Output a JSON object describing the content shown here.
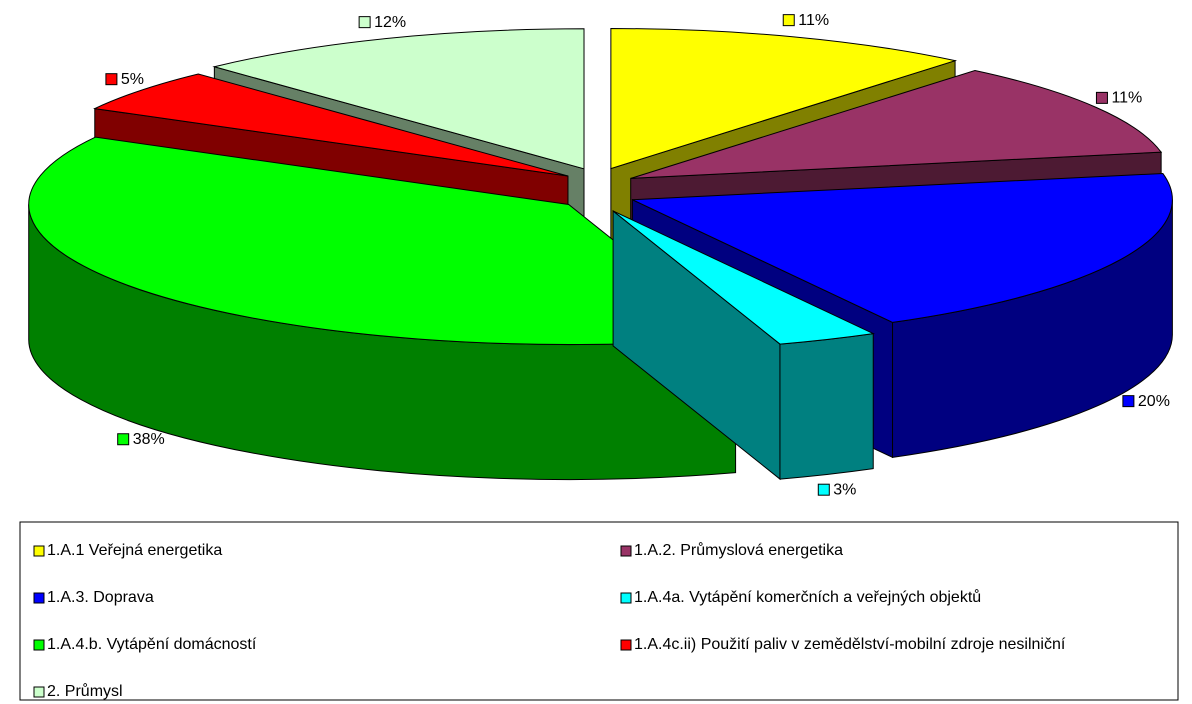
{
  "chart_data": {
    "type": "pie",
    "categories": [
      "1.A.1 Veřejná energetika",
      "1.A.2. Průmyslová energetika",
      "1.A.3. Doprava",
      "1.A.4a. Vytápění komerčních a veřejných objektů",
      "1.A.4.b. Vytápění domácností",
      "1.A.4c.ii) Použití paliv v zemědělství-mobilní zdroje nesilniční",
      "2. Průmysl"
    ],
    "values": [
      11,
      11,
      20,
      3,
      38,
      5,
      12
    ],
    "value_labels": [
      "11%",
      "11%",
      "20%",
      "3%",
      "38%",
      "5%",
      "12%"
    ],
    "colors": [
      "#ffff00",
      "#993366",
      "#0000ff",
      "#00ffff",
      "#00ff00",
      "#ff0000",
      "#ccffcc"
    ],
    "legend": "bottom"
  }
}
